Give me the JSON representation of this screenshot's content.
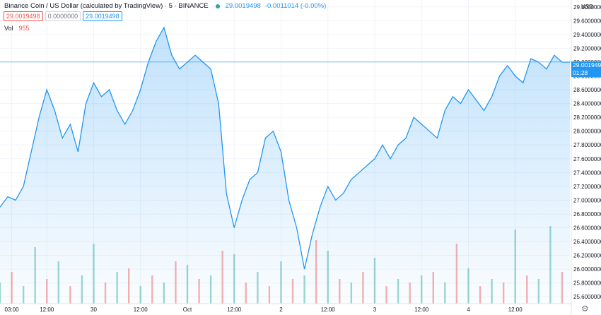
{
  "legend": {
    "title": "Binance Coin / US Dollar (calculated by TradingView) · 5 · BINANCE",
    "price": "29.0019498",
    "change": "-0.0011014 (-0.00%)",
    "box1": "29.0019498",
    "box2": "0.0000000",
    "box3": "29.0019498",
    "vol_label": "Vol",
    "vol_value": "955"
  },
  "price_tag": {
    "price": "29.0019498",
    "countdown": "01:28"
  },
  "colors": {
    "line": "#2196f3",
    "vol_up": "#26a69a",
    "vol_down": "#ef5350"
  },
  "icons": {
    "settings": "gear-icon"
  },
  "chart_data": {
    "type": "area",
    "currency": "USD",
    "ylim": [
      25.5,
      29.9
    ],
    "y_ticks": [
      "29.8000000",
      "29.6000000",
      "29.4000000",
      "29.2000000",
      "29.0000000",
      "28.8000000",
      "28.6000000",
      "28.4000000",
      "28.2000000",
      "28.0000000",
      "27.8000000",
      "27.6000000",
      "27.4000000",
      "27.2000000",
      "27.0000000",
      "26.8000000",
      "26.6000000",
      "26.4000000",
      "26.2000000",
      "26.0000000",
      "25.8000000",
      "25.6000000"
    ],
    "x_ticks": [
      "03:00",
      "12:00",
      "30",
      "12:00",
      "Oct",
      "12:00",
      "2",
      "12:00",
      "3",
      "12:00",
      "4",
      "12:00"
    ],
    "x_tick_hours": [
      3,
      12,
      24,
      36,
      48,
      60,
      72,
      84,
      96,
      108,
      120,
      132
    ],
    "x_range_hours": [
      0,
      146
    ],
    "series": [
      {
        "hours": [
          0,
          2,
          4,
          6,
          8,
          10,
          12,
          14,
          16,
          18,
          20,
          22,
          24,
          26,
          28,
          30,
          32,
          34,
          36,
          38,
          40,
          42,
          44,
          46,
          48,
          50,
          52,
          54,
          56,
          58,
          60,
          62,
          64,
          66,
          68,
          70,
          72,
          74,
          76,
          78,
          80,
          82,
          84,
          86,
          88,
          90,
          92,
          94,
          96,
          98,
          100,
          102,
          104,
          106,
          108,
          110,
          112,
          114,
          116,
          118,
          120,
          122,
          124,
          126,
          128,
          130,
          132,
          134,
          136,
          138,
          140,
          142,
          144,
          146
        ],
        "values": [
          26.9,
          27.05,
          27.0,
          27.2,
          27.7,
          28.2,
          28.6,
          28.3,
          27.9,
          28.1,
          27.7,
          28.4,
          28.7,
          28.5,
          28.6,
          28.3,
          28.1,
          28.3,
          28.6,
          29.0,
          29.3,
          29.5,
          29.1,
          28.9,
          29.0,
          29.1,
          29.0,
          28.9,
          28.4,
          27.1,
          26.6,
          27.0,
          27.3,
          27.4,
          27.9,
          28.0,
          27.7,
          27.0,
          26.6,
          26.0,
          26.5,
          26.9,
          27.2,
          27.0,
          27.1,
          27.3,
          27.4,
          27.5,
          27.6,
          27.8,
          27.6,
          27.8,
          27.9,
          28.2,
          28.1,
          28.0,
          27.9,
          28.3,
          28.5,
          28.4,
          28.6,
          28.45,
          28.3,
          28.5,
          28.8,
          28.95,
          28.8,
          28.7,
          29.05,
          29.0,
          28.9,
          29.1,
          29.0,
          29.0
        ]
      }
    ],
    "volume": {
      "hours": [
        0,
        3,
        6,
        9,
        12,
        15,
        18,
        21,
        24,
        27,
        30,
        33,
        36,
        39,
        42,
        45,
        48,
        51,
        54,
        57,
        60,
        63,
        66,
        69,
        72,
        75,
        78,
        81,
        84,
        87,
        90,
        93,
        96,
        99,
        102,
        105,
        108,
        111,
        114,
        117,
        120,
        123,
        126,
        129,
        132,
        135,
        138,
        141,
        144
      ],
      "values": [
        600,
        900,
        500,
        1600,
        700,
        1200,
        500,
        800,
        1700,
        600,
        900,
        1000,
        500,
        800,
        600,
        1200,
        1100,
        700,
        800,
        1500,
        1400,
        600,
        900,
        500,
        1200,
        700,
        800,
        1800,
        1500,
        700,
        600,
        900,
        1300,
        500,
        700,
        600,
        800,
        900,
        600,
        1700,
        1000,
        500,
        700,
        600,
        2100,
        800,
        700,
        2200,
        900
      ],
      "up": [
        true,
        false,
        true,
        true,
        false,
        true,
        false,
        true,
        true,
        false,
        true,
        false,
        true,
        false,
        true,
        false,
        true,
        false,
        true,
        false,
        true,
        false,
        true,
        false,
        true,
        false,
        true,
        false,
        true,
        false,
        true,
        false,
        true,
        false,
        true,
        false,
        true,
        false,
        true,
        false,
        true,
        false,
        true,
        false,
        true,
        false,
        true,
        true,
        false
      ],
      "max": 2400
    }
  }
}
